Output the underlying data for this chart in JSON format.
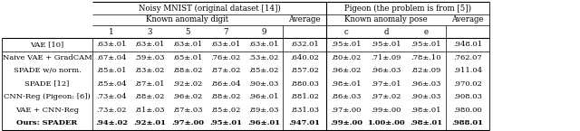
{
  "col_headers_mnist": [
    "1",
    "3",
    "5",
    "7",
    "9"
  ],
  "col_headers_pigeon": [
    "c",
    "d",
    "e"
  ],
  "row_labels": [
    "VAE [10]",
    "Naive VAE + GradCAM",
    "SPADE w/o norm.",
    "SPADE [12]",
    "CNN-Reg (Pigeon: [6])",
    "VAE + CNN-Reg",
    "Ours: SPADER"
  ],
  "row_bold": [
    false,
    false,
    false,
    false,
    false,
    false,
    true
  ],
  "mnist_data": [
    [
      ".63±.01",
      ".63±.01",
      ".63±.01",
      ".63±.01",
      ".63±.01",
      ".632.01"
    ],
    [
      ".67±.04",
      ".59±.03",
      ".65±.01",
      ".76±.02",
      ".53±.02",
      ".640.02"
    ],
    [
      ".85±.01",
      ".83±.02",
      ".88±.02",
      ".87±.02",
      ".85±.02",
      ".857.02"
    ],
    [
      ".85±.04",
      ".87±.01",
      ".92±.02",
      ".86±.04",
      ".90±.03",
      ".880.03"
    ],
    [
      ".73±.04",
      ".88±.02",
      ".96±.02",
      ".88±.02",
      ".96±.01",
      ".881.02"
    ],
    [
      ".73±.02",
      ".81±.03",
      ".87±.03",
      ".85±.02",
      ".89±.03",
      ".831.03"
    ],
    [
      ".94±.02",
      ".92±.01",
      ".97±.00",
      ".95±.01",
      ".96±.01",
      ".947.01"
    ]
  ],
  "pigeon_data": [
    [
      ".95±.01",
      ".95±.01",
      ".95±.01",
      ".948.01"
    ],
    [
      ".80±.02",
      ".71±.09",
      ".78±.10",
      ".762.07"
    ],
    [
      ".96±.02",
      ".96±.03",
      ".82±.09",
      ".911.04"
    ],
    [
      ".98±.01",
      ".97±.01",
      ".96±.03",
      ".970.02"
    ],
    [
      ".86±.03",
      ".97±.02",
      ".90±.03",
      ".908.03"
    ],
    [
      ".97±.00",
      ".99±.00",
      ".98±.01",
      ".980.00"
    ],
    [
      ".99±.00",
      "1.00±.00",
      ".98±.01",
      ".988.01"
    ]
  ],
  "mnist_bold": [
    [
      false,
      false,
      false,
      false,
      false,
      false
    ],
    [
      false,
      false,
      false,
      false,
      false,
      false
    ],
    [
      false,
      false,
      false,
      false,
      false,
      false
    ],
    [
      false,
      false,
      false,
      false,
      false,
      false
    ],
    [
      false,
      false,
      false,
      false,
      false,
      false
    ],
    [
      false,
      false,
      false,
      false,
      false,
      false
    ],
    [
      true,
      true,
      true,
      true,
      true,
      true
    ]
  ],
  "pigeon_bold": [
    [
      false,
      false,
      false,
      false
    ],
    [
      false,
      false,
      false,
      false
    ],
    [
      false,
      false,
      false,
      false
    ],
    [
      false,
      false,
      false,
      false
    ],
    [
      false,
      false,
      false,
      false
    ],
    [
      false,
      false,
      false,
      false
    ],
    [
      true,
      true,
      true,
      true
    ]
  ],
  "title_mnist": "Noisy MNIST (original dataset [14])",
  "title_pigeon": "Pigeon (the problem is from [5])",
  "sub_title_mnist": "Known anomaly digit",
  "sub_title_pigeon": "Known anomaly pose",
  "average_label": "Average",
  "bg_color": "#ffffff",
  "text_color": "#000000",
  "font_size": 6.0,
  "header_font_size": 6.2
}
